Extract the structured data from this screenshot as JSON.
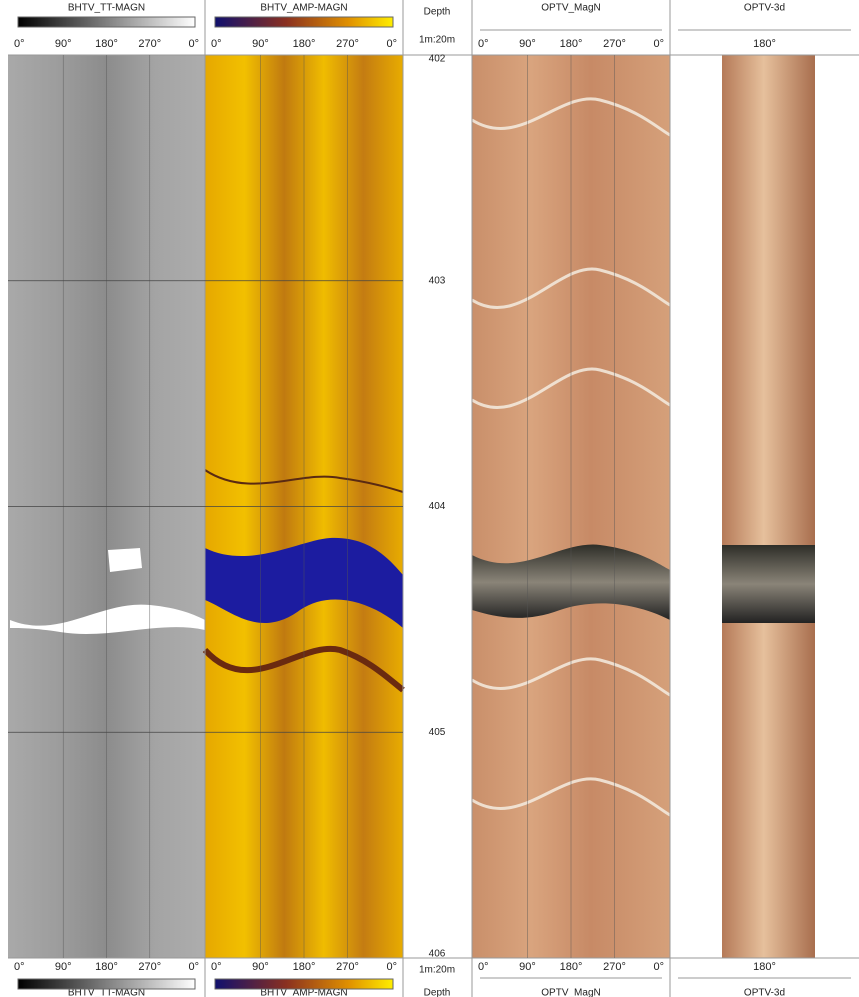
{
  "tracks": [
    {
      "title": "BHTV_TT-MAGN",
      "scale": [
        "0°",
        "90°",
        "180°",
        "270°",
        "0°"
      ]
    },
    {
      "title": "BHTV_AMP-MAGN",
      "scale": [
        "0°",
        "90°",
        "180°",
        "270°",
        "0°"
      ]
    },
    {
      "title": "OPTV_MagN",
      "scale": [
        "0°",
        "90°",
        "180°",
        "270°",
        "0°"
      ]
    },
    {
      "title": "OPTV-3d",
      "scale": [
        "180°"
      ]
    }
  ],
  "depth": {
    "title": "Depth",
    "scale_ratio": "1m:20m",
    "ticks": [
      402,
      403,
      404,
      405,
      406
    ]
  }
}
